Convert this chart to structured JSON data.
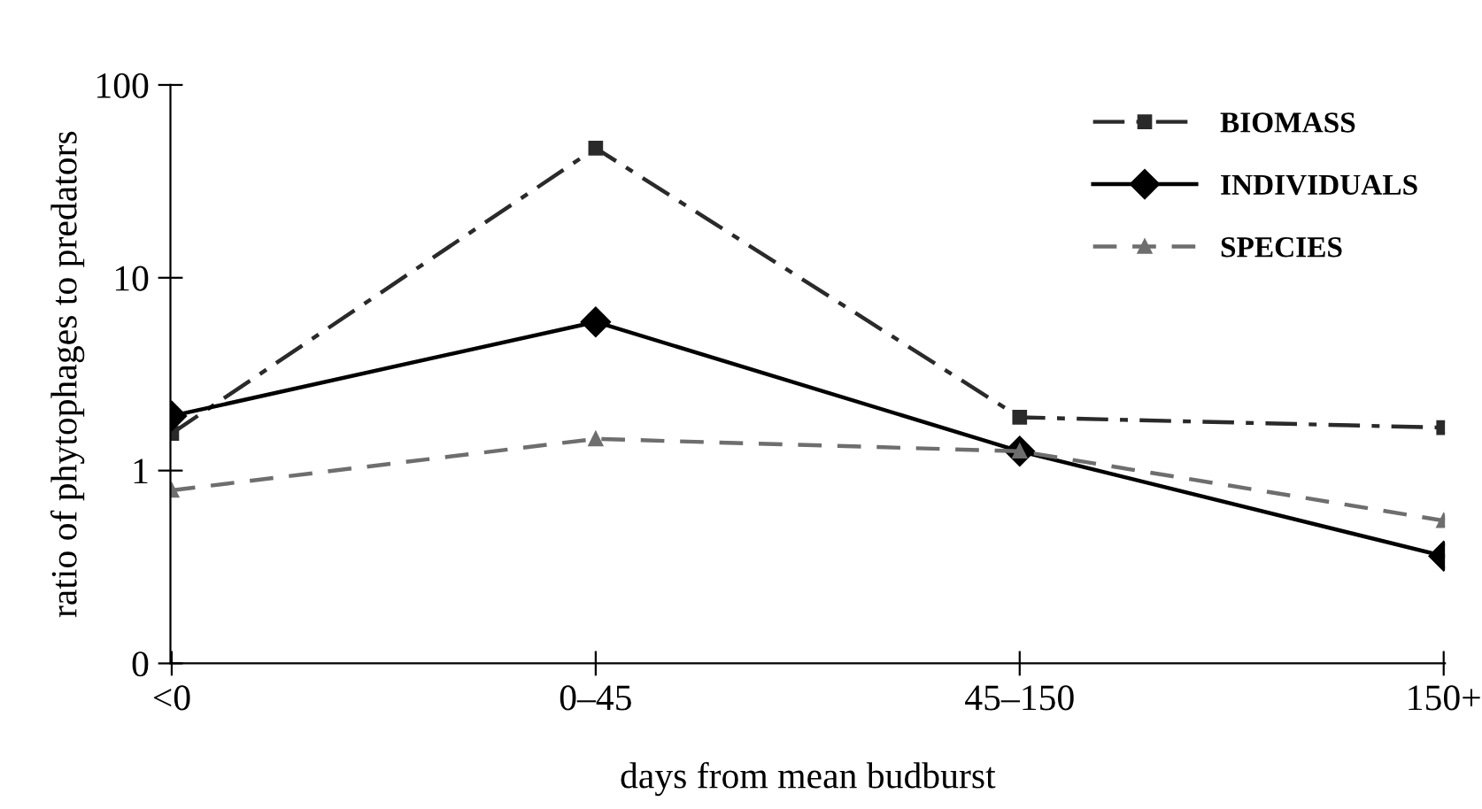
{
  "chart_data": {
    "type": "line",
    "xlabel": "days from mean budburst",
    "ylabel": "ratio of phytophages to predators",
    "categories": [
      "<0",
      "0–45",
      "45–150",
      "150+"
    ],
    "series": [
      {
        "name": "BIOMASS",
        "color": "#2a2a2a",
        "values": [
          1.56,
          47,
          1.89,
          1.67
        ],
        "marker": "square",
        "line_style": "dashdot"
      },
      {
        "name": "INDIVIDUALS",
        "color": "#000000",
        "values": [
          1.92,
          5.9,
          1.26,
          0.36
        ],
        "marker": "diamond",
        "line_style": "solid"
      },
      {
        "name": "SPECIES",
        "color": "#6e6e6e",
        "values": [
          0.79,
          1.46,
          1.26,
          0.55
        ],
        "marker": "triangle",
        "line_style": "dashed"
      }
    ],
    "log": "y",
    "ylim": [
      0.1,
      100
    ],
    "yticks": [
      {
        "value": 0.1,
        "label": "0"
      },
      1,
      10,
      100
    ],
    "grid": false,
    "legend": "top right"
  }
}
